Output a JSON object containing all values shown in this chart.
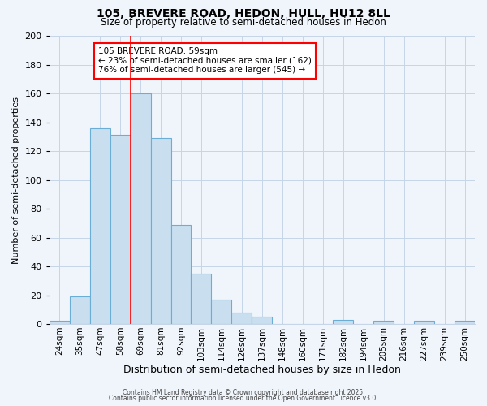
{
  "title": "105, BREVERE ROAD, HEDON, HULL, HU12 8LL",
  "subtitle": "Size of property relative to semi-detached houses in Hedon",
  "xlabel": "Distribution of semi-detached houses by size in Hedon",
  "ylabel": "Number of semi-detached properties",
  "categories": [
    "24sqm",
    "35sqm",
    "47sqm",
    "58sqm",
    "69sqm",
    "81sqm",
    "92sqm",
    "103sqm",
    "114sqm",
    "126sqm",
    "137sqm",
    "148sqm",
    "160sqm",
    "171sqm",
    "182sqm",
    "194sqm",
    "205sqm",
    "216sqm",
    "227sqm",
    "239sqm",
    "250sqm"
  ],
  "values": [
    2,
    19,
    136,
    131,
    160,
    129,
    69,
    35,
    17,
    8,
    5,
    0,
    0,
    0,
    3,
    0,
    2,
    0,
    2,
    0,
    2
  ],
  "bar_color": "#c9dff0",
  "bar_edge_color": "#6aaed6",
  "ylim": [
    0,
    200
  ],
  "yticks": [
    0,
    20,
    40,
    60,
    80,
    100,
    120,
    140,
    160,
    180,
    200
  ],
  "annotation_title": "105 BREVERE ROAD: 59sqm",
  "annotation_line1": "← 23% of semi-detached houses are smaller (162)",
  "annotation_line2": "76% of semi-detached houses are larger (545) →",
  "property_size_label": "59sqm",
  "red_line_x": 3.5,
  "footer1": "Contains HM Land Registry data © Crown copyright and database right 2025.",
  "footer2": "Contains public sector information licensed under the Open Government Licence v3.0.",
  "bg_color": "#f0f5fc",
  "grid_color": "#c5d5e8"
}
